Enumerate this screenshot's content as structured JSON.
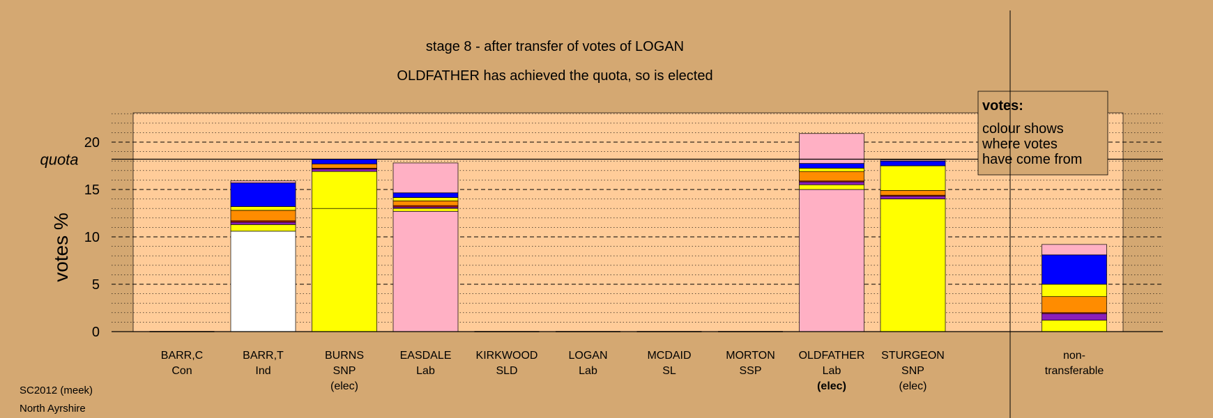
{
  "title": "stage 8 - after transfer of votes of LOGAN",
  "subtitle": "OLDFATHER has achieved the quota, so is elected",
  "footer": {
    "line1": "SC2012 (meek)",
    "line2": "North Ayrshire"
  },
  "legend": {
    "heading": "votes:",
    "lines": [
      "colour shows",
      "where votes",
      "have come from"
    ]
  },
  "colors": {
    "background": "#D4A872",
    "plot_background": "#FFCC99",
    "Con": "#4F9BD5",
    "Ind": "#FFFFFF",
    "SNP": "#FFFF00",
    "Lab": "#FFB0C4",
    "SLD": "#FF8C00",
    "SL": "#CC2200",
    "SSP": "#8B1FB8",
    "Ind_transfer": "#0000FF"
  },
  "chart_data": {
    "type": "bar",
    "stacked": true,
    "ylabel": "votes %",
    "ylim": [
      0,
      23
    ],
    "yticks": [
      0,
      5,
      10,
      15,
      20
    ],
    "quota": 18.2,
    "quota_label": "quota",
    "grid": "dashed horizontal",
    "candidates": [
      {
        "name": "BARR,C",
        "party": "Con",
        "status": "",
        "segments": []
      },
      {
        "name": "BARR,T",
        "party": "Ind",
        "status": "",
        "segments": [
          {
            "color": "Ind",
            "value": 10.6
          },
          {
            "color": "SNP",
            "value": 0.7
          },
          {
            "color": "SSP",
            "value": 0.25
          },
          {
            "color": "SL",
            "value": 0.15
          },
          {
            "color": "SLD",
            "value": 1.1
          },
          {
            "color": "SNP",
            "value": 0.4
          },
          {
            "color": "Ind_transfer",
            "value": 2.5
          },
          {
            "color": "Lab",
            "value": 0.2
          }
        ]
      },
      {
        "name": "BURNS",
        "party": "SNP",
        "status": "(elec)",
        "segments": [
          {
            "color": "SNP",
            "value": 13.0
          },
          {
            "color": "SNP",
            "value": 3.9
          },
          {
            "color": "SSP",
            "value": 0.25
          },
          {
            "color": "SL",
            "value": 0.1
          },
          {
            "color": "SLD",
            "value": 0.45
          },
          {
            "color": "Ind_transfer",
            "value": 0.5
          }
        ]
      },
      {
        "name": "EASDALE",
        "party": "Lab",
        "status": "",
        "segments": [
          {
            "color": "Lab",
            "value": 12.7
          },
          {
            "color": "SNP",
            "value": 0.3
          },
          {
            "color": "SSP",
            "value": 0.15
          },
          {
            "color": "SL",
            "value": 0.15
          },
          {
            "color": "SLD",
            "value": 0.5
          },
          {
            "color": "SNP",
            "value": 0.35
          },
          {
            "color": "Ind_transfer",
            "value": 0.5
          },
          {
            "color": "Lab",
            "value": 3.15
          }
        ]
      },
      {
        "name": "KIRKWOOD",
        "party": "SLD",
        "status": "",
        "segments": []
      },
      {
        "name": "LOGAN",
        "party": "Lab",
        "status": "",
        "segments": []
      },
      {
        "name": "MCDAID",
        "party": "SL",
        "status": "",
        "segments": []
      },
      {
        "name": "MORTON",
        "party": "SSP",
        "status": "",
        "segments": []
      },
      {
        "name": "OLDFATHER",
        "party": "Lab",
        "status": "(elec)",
        "segments": [
          {
            "color": "Lab",
            "value": 15.0
          },
          {
            "color": "SNP",
            "value": 0.5
          },
          {
            "color": "SSP",
            "value": 0.3
          },
          {
            "color": "SL",
            "value": 0.1
          },
          {
            "color": "SLD",
            "value": 1.0
          },
          {
            "color": "SNP",
            "value": 0.35
          },
          {
            "color": "Ind_transfer",
            "value": 0.5
          },
          {
            "color": "Lab",
            "value": 3.15
          }
        ]
      },
      {
        "name": "STURGEON",
        "party": "SNP",
        "status": "(elec)",
        "segments": [
          {
            "color": "SNP",
            "value": 14.0
          },
          {
            "color": "SSP",
            "value": 0.3
          },
          {
            "color": "SL",
            "value": 0.1
          },
          {
            "color": "SLD",
            "value": 0.5
          },
          {
            "color": "SNP",
            "value": 2.6
          },
          {
            "color": "Ind_transfer",
            "value": 0.5
          },
          {
            "color": "Lab",
            "value": 0.1
          }
        ]
      }
    ],
    "non_transferable": {
      "label_lines": [
        "non-",
        "transferable"
      ],
      "segments": [
        {
          "color": "SNP",
          "value": 1.2
        },
        {
          "color": "SSP",
          "value": 0.7
        },
        {
          "color": "SL",
          "value": 0.1
        },
        {
          "color": "SLD",
          "value": 1.7
        },
        {
          "color": "SNP",
          "value": 1.3
        },
        {
          "color": "Ind_transfer",
          "value": 3.1
        },
        {
          "color": "Lab",
          "value": 1.1
        }
      ]
    }
  }
}
